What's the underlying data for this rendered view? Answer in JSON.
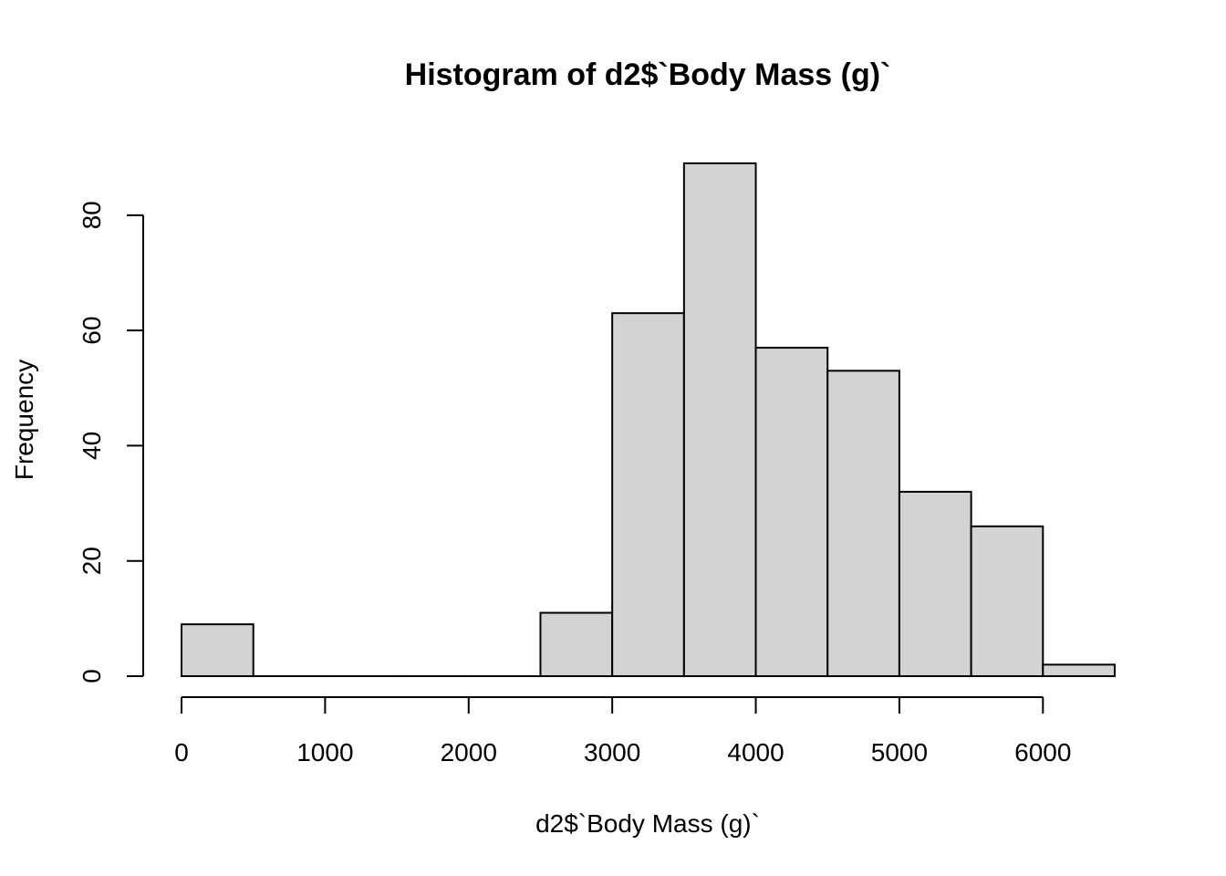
{
  "chart_data": {
    "type": "bar",
    "title": "Histogram of d2$`Body Mass (g)`",
    "xlabel": "d2$`Body Mass (g)`",
    "ylabel": "Frequency",
    "bin_edges": [
      0,
      500,
      1000,
      1500,
      2000,
      2500,
      3000,
      3500,
      4000,
      4500,
      5000,
      5500,
      6000,
      6500
    ],
    "counts": [
      9,
      0,
      0,
      0,
      0,
      11,
      63,
      89,
      57,
      53,
      32,
      26,
      2
    ],
    "xlim": [
      0,
      6500
    ],
    "ylim": [
      0,
      89
    ],
    "x_ticks": [
      0,
      1000,
      2000,
      3000,
      4000,
      5000,
      6000
    ],
    "x_tick_labels": [
      "0",
      "1000",
      "2000",
      "3000",
      "4000",
      "5000",
      "6000"
    ],
    "y_ticks": [
      0,
      20,
      40,
      60,
      80
    ],
    "y_tick_labels": [
      "0",
      "20",
      "40",
      "60",
      "80"
    ],
    "bar_fill": "#d3d3d3",
    "grid": false
  }
}
